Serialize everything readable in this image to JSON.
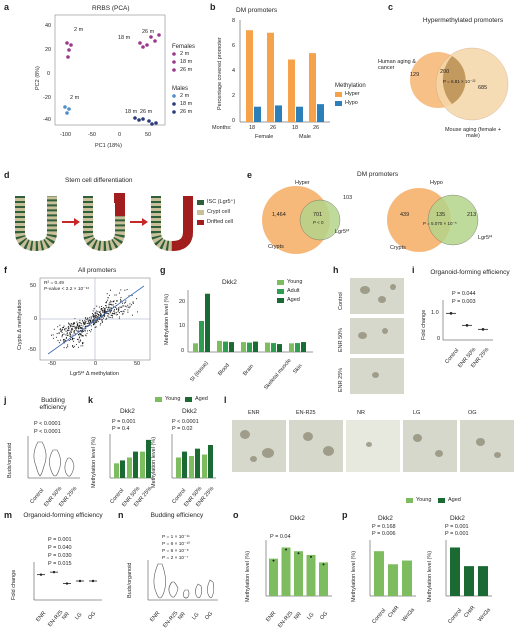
{
  "panels": [
    "a",
    "b",
    "c",
    "d",
    "e",
    "f",
    "g",
    "h",
    "i",
    "j",
    "k",
    "l",
    "m",
    "n",
    "o",
    "p"
  ],
  "a": {
    "title": "RRBS (PCA)",
    "xlabel": "PC1 (18%)",
    "ylabel": "PC2 (8%)",
    "xticks": [
      "-100",
      "-50",
      "0",
      "50"
    ],
    "yticks": [
      "-40",
      "-20",
      "0",
      "20",
      "40"
    ],
    "labels": [
      "2 m",
      "18 m",
      "26 m",
      "2 m",
      "18 m",
      "26 m"
    ],
    "legend_female_title": "Females",
    "legend_male_title": "Males",
    "legend_items": [
      "2 m",
      "18 m",
      "26 m"
    ]
  },
  "b": {
    "title": "DM promoters",
    "ylabel": "Percentage covered promoter",
    "legend_title": "Methylation",
    "legend": [
      "Hyper",
      "Hypo"
    ],
    "months_label": "Months:",
    "months": [
      "18",
      "26",
      "18",
      "26"
    ],
    "groups": [
      "Female",
      "Male"
    ],
    "yticks": [
      "0",
      "2",
      "4",
      "6",
      "8"
    ]
  },
  "c": {
    "title": "Hypermethylated promoters",
    "left_label": "Human aging & cancer",
    "right_label": "Mouse aging (female + male)",
    "left_only": "129",
    "overlap": "200",
    "right_only": "685",
    "pval": "P = 6.81 × 10⁻²²"
  },
  "d": {
    "title": "Stem cell differentiation",
    "legend": [
      "ISC (Lgr5⁺)",
      "Crypt cell",
      "Drifted cell"
    ]
  },
  "e": {
    "title": "DM promoters",
    "sub_left": "Hyper",
    "sub_right": "Hypo",
    "left": {
      "a": "1,464",
      "overlap": "701",
      "b": "103",
      "pval": "P < 0",
      "a_label": "Crypts",
      "b_label": "Lgr5ᴴⁱ"
    },
    "right": {
      "a": "439",
      "overlap": "135",
      "b": "213",
      "pval": "P = 5.070 × 10⁻⁵",
      "a_label": "Crypts",
      "b_label": "Lgr5ᴴⁱ"
    }
  },
  "f": {
    "title": "All promoters",
    "r2": "R² = 0.49",
    "pval": "P-value < 2.2 × 10⁻¹⁶",
    "xlabel": "Lgr5ᴴⁱ Δ methylation",
    "ylabel": "Crypts Δ methylation",
    "ticks": [
      "-50",
      "0",
      "50"
    ]
  },
  "g": {
    "gene": "Dkk2",
    "ylabel": "Methylation level (%)",
    "legend": [
      "Young",
      "Adult",
      "Aged"
    ],
    "categories": [
      "SI (tissue)",
      "Blood",
      "Brain",
      "Skeletal muscle",
      "Skin"
    ],
    "yticks": [
      "0",
      "5",
      "10",
      "15",
      "20",
      "25"
    ]
  },
  "h": {
    "labels": [
      "Control",
      "ENR 50%",
      "ENR 25%"
    ]
  },
  "i": {
    "title": "Organoid-forming efficiency",
    "ylabel": "Fold change",
    "p1": "P = 0.044",
    "p2": "P = 0.003",
    "categories": [
      "Control",
      "ENR 50%",
      "ENR 25%"
    ],
    "yticks": [
      "0",
      "0.5",
      "1.0",
      "1.5"
    ]
  },
  "j": {
    "title": "Budding efficiency",
    "ylabel": "Buds/organoid",
    "p1": "P < 0.0001",
    "p2": "P < 0.0001",
    "categories": [
      "Control",
      "ENR 50%",
      "ENR 25%"
    ],
    "yticks": [
      "0",
      "5",
      "10",
      "15",
      "20"
    ]
  },
  "k": {
    "gene": "Dkk2",
    "legend": [
      "Young",
      "Aged"
    ],
    "ylabel": "Methylation level (%)",
    "left": {
      "categories": [
        "Control",
        "ENR 50%",
        "ENR 25%"
      ],
      "p": [
        "P = 0.001",
        "P = 0.4"
      ],
      "yticks": [
        "0",
        "10",
        "20",
        "30"
      ]
    },
    "right": {
      "gene": "Dkk2",
      "categories": [
        "Control",
        "ENR 50%",
        "ENR 25%"
      ],
      "p": [
        "P < 0.0001",
        "P = 0.02"
      ],
      "yticks": [
        "0",
        "20",
        "40",
        "60"
      ]
    }
  },
  "l": {
    "labels": [
      "ENR",
      "EN-R25",
      "NR",
      "LG",
      "OG"
    ]
  },
  "m": {
    "title": "Organoid-forming efficiency",
    "ylabel": "Fold change",
    "categories": [
      "ENR",
      "EN-R25",
      "NR",
      "LG",
      "OG"
    ],
    "p": [
      "P = 0.001",
      "P = 0.040",
      "P = 0.030",
      "P = 0.015"
    ],
    "yticks": [
      "0",
      "0.5",
      "1.0",
      "1.5"
    ]
  },
  "n": {
    "title": "Budding efficiency",
    "ylabel": "Buds/organoid",
    "categories": [
      "ENR",
      "EN-R25",
      "NR",
      "LG",
      "OG"
    ],
    "p": [
      "P = 1 × 10⁻¹¹",
      "P = 6 × 10⁻¹⁰",
      "P = 6 × 10⁻⁸",
      "P = 2 × 10⁻⁷"
    ],
    "yticks": [
      "0",
      "10",
      "20",
      "30"
    ]
  },
  "o": {
    "gene": "Dkk2",
    "ylabel": "Methylation level (%)",
    "categories": [
      "ENR",
      "EN-R25",
      "NR",
      "LG",
      "OG"
    ],
    "p": "P = 0.04",
    "yticks": [
      "0",
      "5",
      "10",
      "15"
    ]
  },
  "p": {
    "legend": [
      "Young",
      "Aged"
    ],
    "left": {
      "gene": "Dkk2",
      "categories": [
        "Control",
        "CHIR",
        "Wnt3a"
      ],
      "p": [
        "P = 0.168",
        "P = 0.006"
      ],
      "yticks": [
        "0",
        "5",
        "10",
        "15"
      ]
    },
    "right": {
      "gene": "Dkk2",
      "categories": [
        "Control",
        "CHIR",
        "Wnt3a"
      ],
      "p": [
        "P = 0.001",
        "P = 0.001"
      ],
      "yticks": [
        "0",
        "10",
        "20",
        "30"
      ]
    },
    "ylabel": "Methylation level (%)"
  },
  "colors": {
    "female": "#9b3a8c",
    "male": "#2b3a7a",
    "male_light": "#4f8ec9",
    "hyper": "#f5a24b",
    "hypo": "#2c7fb8",
    "young": "#7dbd5f",
    "adult": "#2f9c4f",
    "aged": "#1b6a34",
    "venn_orange": "#f6b97a",
    "venn_green": "#b5d58a"
  },
  "chart_data": [
    {
      "type": "bar",
      "title": "DM promoters",
      "categories": [
        "Female 18",
        "Female 26",
        "Male 18",
        "Male 26"
      ],
      "series": [
        {
          "name": "Hyper",
          "values": [
            7.2,
            7.0,
            4.9,
            5.4
          ]
        },
        {
          "name": "Hypo",
          "values": [
            1.2,
            1.3,
            1.2,
            1.4
          ]
        }
      ],
      "ylabel": "Percentage covered promoter",
      "ylim": [
        0,
        8
      ]
    },
    {
      "type": "bar",
      "title": "Dkk2",
      "categories": [
        "SI (tissue)",
        "Blood",
        "Brain",
        "Skeletal muscle",
        "Skin"
      ],
      "series": [
        {
          "name": "Young",
          "values": [
            3.5,
            4.5,
            4.0,
            3.8,
            3.5
          ]
        },
        {
          "name": "Adult",
          "values": [
            12.5,
            4.2,
            3.8,
            3.6,
            3.6
          ]
        },
        {
          "name": "Aged",
          "values": [
            23.5,
            4.0,
            4.2,
            3.2,
            4.0
          ]
        }
      ],
      "ylabel": "Methylation level (%)",
      "ylim": [
        0,
        25
      ]
    },
    {
      "type": "bar",
      "title": "Organoid-forming efficiency",
      "categories": [
        "Control",
        "ENR 50%",
        "ENR 25%"
      ],
      "values": [
        1.0,
        0.55,
        0.4
      ],
      "ylabel": "Fold change",
      "ylim": [
        0,
        1.5
      ]
    },
    {
      "type": "bar",
      "title": "Organoid-forming efficiency",
      "categories": [
        "ENR",
        "EN-R25",
        "NR",
        "LG",
        "OG"
      ],
      "values": [
        1.0,
        1.1,
        0.65,
        0.75,
        0.75
      ],
      "ylabel": "Fold change",
      "ylim": [
        0,
        1.5
      ]
    },
    {
      "type": "bar",
      "title": "Dkk2",
      "categories": [
        "ENR",
        "EN-R25",
        "NR",
        "LG",
        "OG"
      ],
      "values": [
        10,
        13,
        12,
        11,
        9
      ],
      "ylabel": "Methylation level (%)",
      "ylim": [
        0,
        15
      ]
    }
  ]
}
